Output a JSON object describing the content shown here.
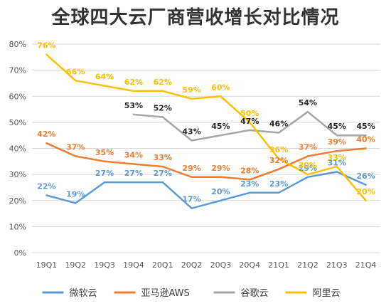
{
  "chart_data": {
    "type": "line",
    "title": "全球四大云厂商营收增长对比情况",
    "categories": [
      "19Q1",
      "19Q2",
      "19Q3",
      "19Q4",
      "20Q1",
      "20Q2",
      "20Q3",
      "20Q4",
      "21Q1",
      "21Q2",
      "21Q3",
      "21Q4"
    ],
    "ylim": [
      0,
      80
    ],
    "yticks": [
      "0%",
      "10%",
      "20%",
      "30%",
      "40%",
      "50%",
      "60%",
      "70%",
      "80%"
    ],
    "grid": true,
    "legend_position": "bottom",
    "series": [
      {
        "name": "微软云",
        "color": "#5b9bd5",
        "values": [
          22,
          19,
          27,
          27,
          27,
          17,
          20,
          23,
          23,
          29,
          31,
          26
        ],
        "labels": [
          "22%",
          "19%",
          "27%",
          "27%",
          "27%",
          "17%",
          "20%",
          "23%",
          "23%",
          "29%",
          "31%",
          "26%"
        ]
      },
      {
        "name": "亚马逊AWS",
        "color": "#ed7d31",
        "values": [
          42,
          37,
          35,
          34,
          33,
          29,
          29,
          28,
          32,
          37,
          39,
          40
        ],
        "labels": [
          "42%",
          "37%",
          "35%",
          "34%",
          "33%",
          "29%",
          "29%",
          "28%",
          "32%",
          "37%",
          "39%",
          "40%"
        ]
      },
      {
        "name": "谷歌云",
        "color": "#a5a5a5",
        "values": [
          null,
          null,
          null,
          53,
          52,
          43,
          45,
          47,
          46,
          54,
          45,
          45
        ],
        "labels": [
          null,
          null,
          null,
          "53%",
          "52%",
          "43%",
          "45%",
          "47%",
          "46%",
          "54%",
          "45%",
          "45%"
        ]
      },
      {
        "name": "阿里云",
        "color": "#ffc000",
        "values": [
          76,
          66,
          64,
          62,
          62,
          59,
          60,
          50,
          36,
          30,
          33,
          20
        ],
        "labels": [
          "76%",
          "66%",
          "64%",
          "62%",
          "62%",
          "59%",
          "60%",
          "50%",
          "36%",
          "30%",
          "33%",
          "20%"
        ]
      }
    ]
  }
}
